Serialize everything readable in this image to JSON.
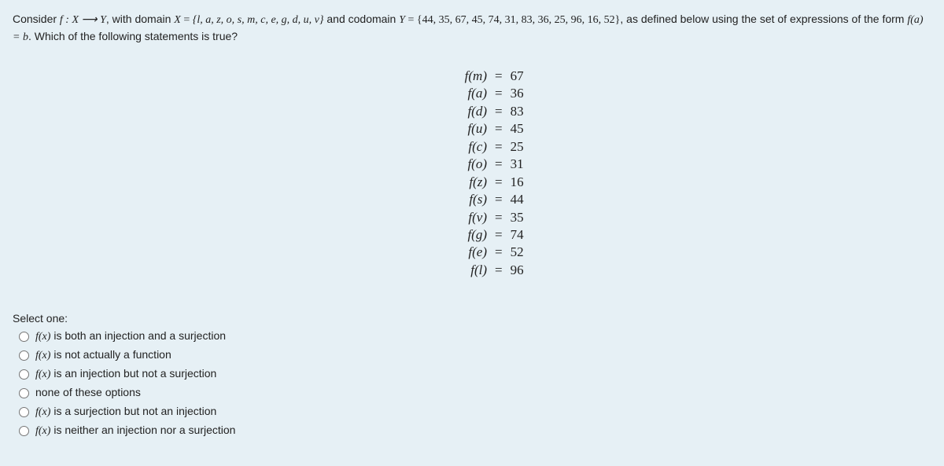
{
  "question": {
    "prefix": "Consider ",
    "func": "f : X ⟶ Y",
    "withDomain": ", with domain ",
    "domainVar": "X",
    "eq1": " = ",
    "domainSet": "{l, a, z, o, s, m, c, e, g, d, u, v}",
    "andCodomain": " and codomain ",
    "codomainVar": "Y",
    "eq2": " = ",
    "codomainSet": "{44, 35, 67, 45, 74, 31, 83, 36, 25, 96, 16, 52}",
    "definedBelow": ", as defined below using the set of expressions of the form ",
    "form": "f(a) = b",
    "tail": ". Which of the following statements is true?"
  },
  "equations": [
    {
      "lhs": "f(m)",
      "rhs": "67"
    },
    {
      "lhs": "f(a)",
      "rhs": "36"
    },
    {
      "lhs": "f(d)",
      "rhs": "83"
    },
    {
      "lhs": "f(u)",
      "rhs": "45"
    },
    {
      "lhs": "f(c)",
      "rhs": "25"
    },
    {
      "lhs": "f(o)",
      "rhs": "31"
    },
    {
      "lhs": "f(z)",
      "rhs": "16"
    },
    {
      "lhs": "f(s)",
      "rhs": "44"
    },
    {
      "lhs": "f(v)",
      "rhs": "35"
    },
    {
      "lhs": "f(g)",
      "rhs": "74"
    },
    {
      "lhs": "f(e)",
      "rhs": "52"
    },
    {
      "lhs": "f(l)",
      "rhs": "96"
    }
  ],
  "selectLabel": "Select one:",
  "options": [
    {
      "pre": "f(x)",
      "text": " is both an injection and a surjection"
    },
    {
      "pre": "f(x)",
      "text": " is not actually a function"
    },
    {
      "pre": "f(x)",
      "text": " is an injection but not a surjection"
    },
    {
      "pre": "",
      "text": "none of these options"
    },
    {
      "pre": "f(x)",
      "text": " is a surjection but not an injection"
    },
    {
      "pre": "f(x)",
      "text": " is neither an injection nor a surjection"
    }
  ]
}
